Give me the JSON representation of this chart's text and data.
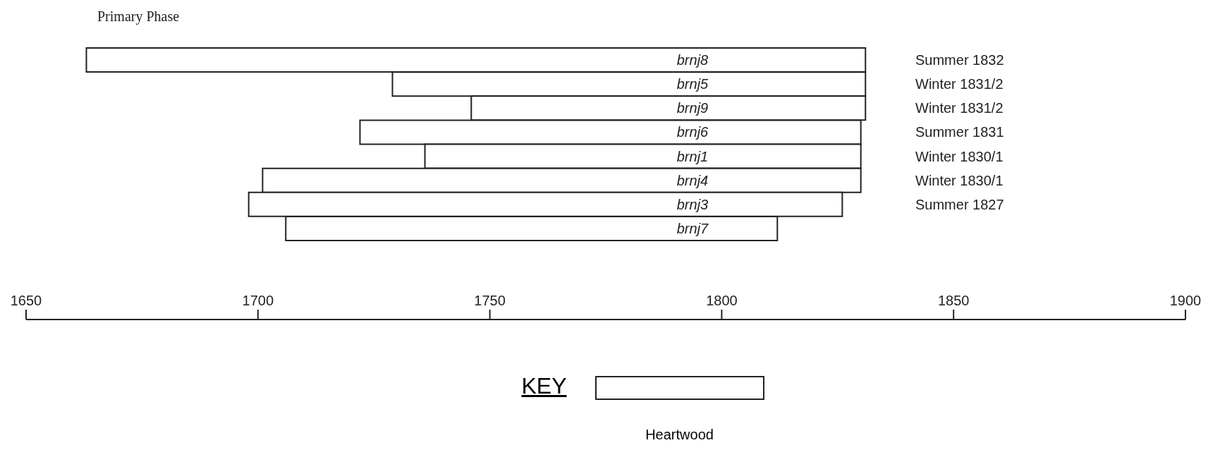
{
  "chart_data": {
    "type": "bar",
    "orientation": "horizontal",
    "title": "Primary Phase",
    "categories": [
      "brnj8",
      "brnj5",
      "brnj9",
      "brnj6",
      "brnj1",
      "brnj4",
      "brnj3",
      "brnj7"
    ],
    "series": [
      {
        "name": "Heartwood",
        "color": "#ffffff",
        "values": [
          168,
          102,
          85,
          108,
          94,
          129,
          128,
          106
        ],
        "base": [
          1663,
          1729,
          1746,
          1722,
          1736,
          1701,
          1698,
          1706
        ]
      }
    ],
    "xlim": [
      1650,
      1900
    ],
    "xticks": [
      1650,
      1700,
      1750,
      1800,
      1850,
      1900
    ],
    "legend": "bottom",
    "legend_title": "KEY",
    "annotations": [
      "Summer 1832",
      "Winter 1831/2",
      "Winter 1831/2",
      "Summer 1831",
      "Winter 1830/1",
      "Winter 1830/1",
      "Summer 1827"
    ]
  }
}
